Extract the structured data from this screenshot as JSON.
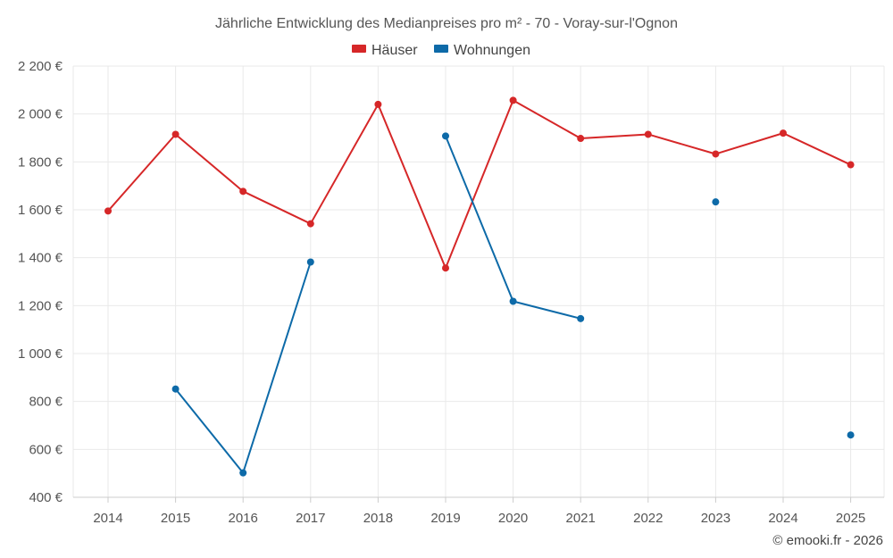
{
  "chart_data": {
    "type": "line",
    "title": "Jährliche Entwicklung des Medianpreises pro m² - 70 - Voray-sur-l'Ognon",
    "xlabel": "",
    "ylabel": "",
    "categories": [
      "2014",
      "2015",
      "2016",
      "2017",
      "2018",
      "2019",
      "2020",
      "2021",
      "2022",
      "2023",
      "2024",
      "2025"
    ],
    "ylim": [
      400,
      2200
    ],
    "yticks": [
      400,
      600,
      800,
      1000,
      1200,
      1400,
      1600,
      1800,
      2000,
      2200
    ],
    "ytick_labels": [
      "400 €",
      "600 €",
      "800 €",
      "1 000 €",
      "1 200 €",
      "1 400 €",
      "1 600 €",
      "1 800 €",
      "2 000 €",
      "2 200 €"
    ],
    "legend_position": "top-center",
    "grid": true,
    "series": [
      {
        "name": "Häuser",
        "color": "#d62728",
        "values": [
          1595,
          1915,
          1677,
          1542,
          2040,
          1357,
          2057,
          1898,
          1915,
          1833,
          1920,
          1788
        ]
      },
      {
        "name": "Wohnungen",
        "color": "#0d6aa8",
        "values": [
          null,
          852,
          502,
          1382,
          null,
          1908,
          1218,
          1146,
          null,
          1633,
          null,
          660
        ]
      }
    ]
  },
  "credit": "© emooki.fr - 2026"
}
